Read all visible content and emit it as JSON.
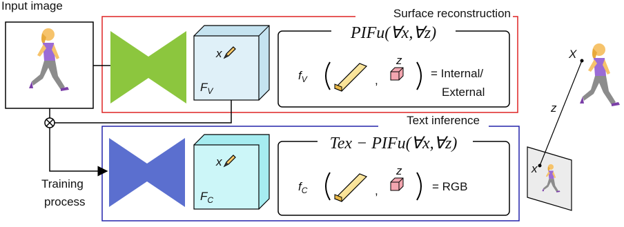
{
  "input": {
    "title": "Input image"
  },
  "surface": {
    "title": "Surface reconstruction",
    "formula": "PIFu(∀x,∀z)",
    "point_label": "x",
    "feature_label": {
      "main": "F",
      "sub": "V"
    },
    "function": {
      "main": "f",
      "sub": "V"
    },
    "depth_label": "z",
    "comma": ",",
    "result": [
      "= Internal/",
      "External"
    ]
  },
  "texture": {
    "title": "Text inference",
    "formula": "Tex − PIFu(∀x,∀z)",
    "point_label": "x",
    "feature_label": {
      "main": "F",
      "sub": "C"
    },
    "function": {
      "main": "f",
      "sub": "C"
    },
    "depth_label": "z",
    "comma": ",",
    "result": [
      "= RGB"
    ]
  },
  "training": [
    "Training",
    "process"
  ],
  "projection": {
    "world_point": "X",
    "depth": "z",
    "image_point": "x"
  }
}
